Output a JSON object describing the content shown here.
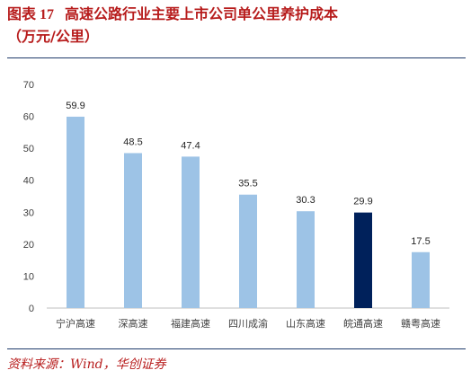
{
  "header": {
    "figure_number": "图表 17",
    "title_line1": "高速公路行业主要上市公司单公里养护成本",
    "title_line2": "（万元/公里）"
  },
  "footer": {
    "source": "资料来源：Wind，华创证券"
  },
  "colors": {
    "accent": "#b71c1c",
    "rule": "#1f3a6b",
    "bar": "#9dc3e6",
    "highlight": "#00215b"
  },
  "chart_data": {
    "type": "bar",
    "categories": [
      "宁沪高速",
      "深高速",
      "福建高速",
      "四川成渝",
      "山东高速",
      "皖通高速",
      "赣粤高速"
    ],
    "values": [
      59.9,
      48.5,
      47.4,
      35.5,
      30.3,
      29.9,
      17.5
    ],
    "data_labels": [
      "59.9",
      "48.5",
      "47.4",
      "35.5",
      "30.3",
      "29.9",
      "17.5"
    ],
    "highlight_category": "皖通高速",
    "ylim": [
      0,
      70
    ],
    "yticks": [
      0,
      10,
      20,
      30,
      40,
      50,
      60,
      70
    ],
    "title": "",
    "xlabel": "",
    "ylabel": "",
    "grid": false
  }
}
